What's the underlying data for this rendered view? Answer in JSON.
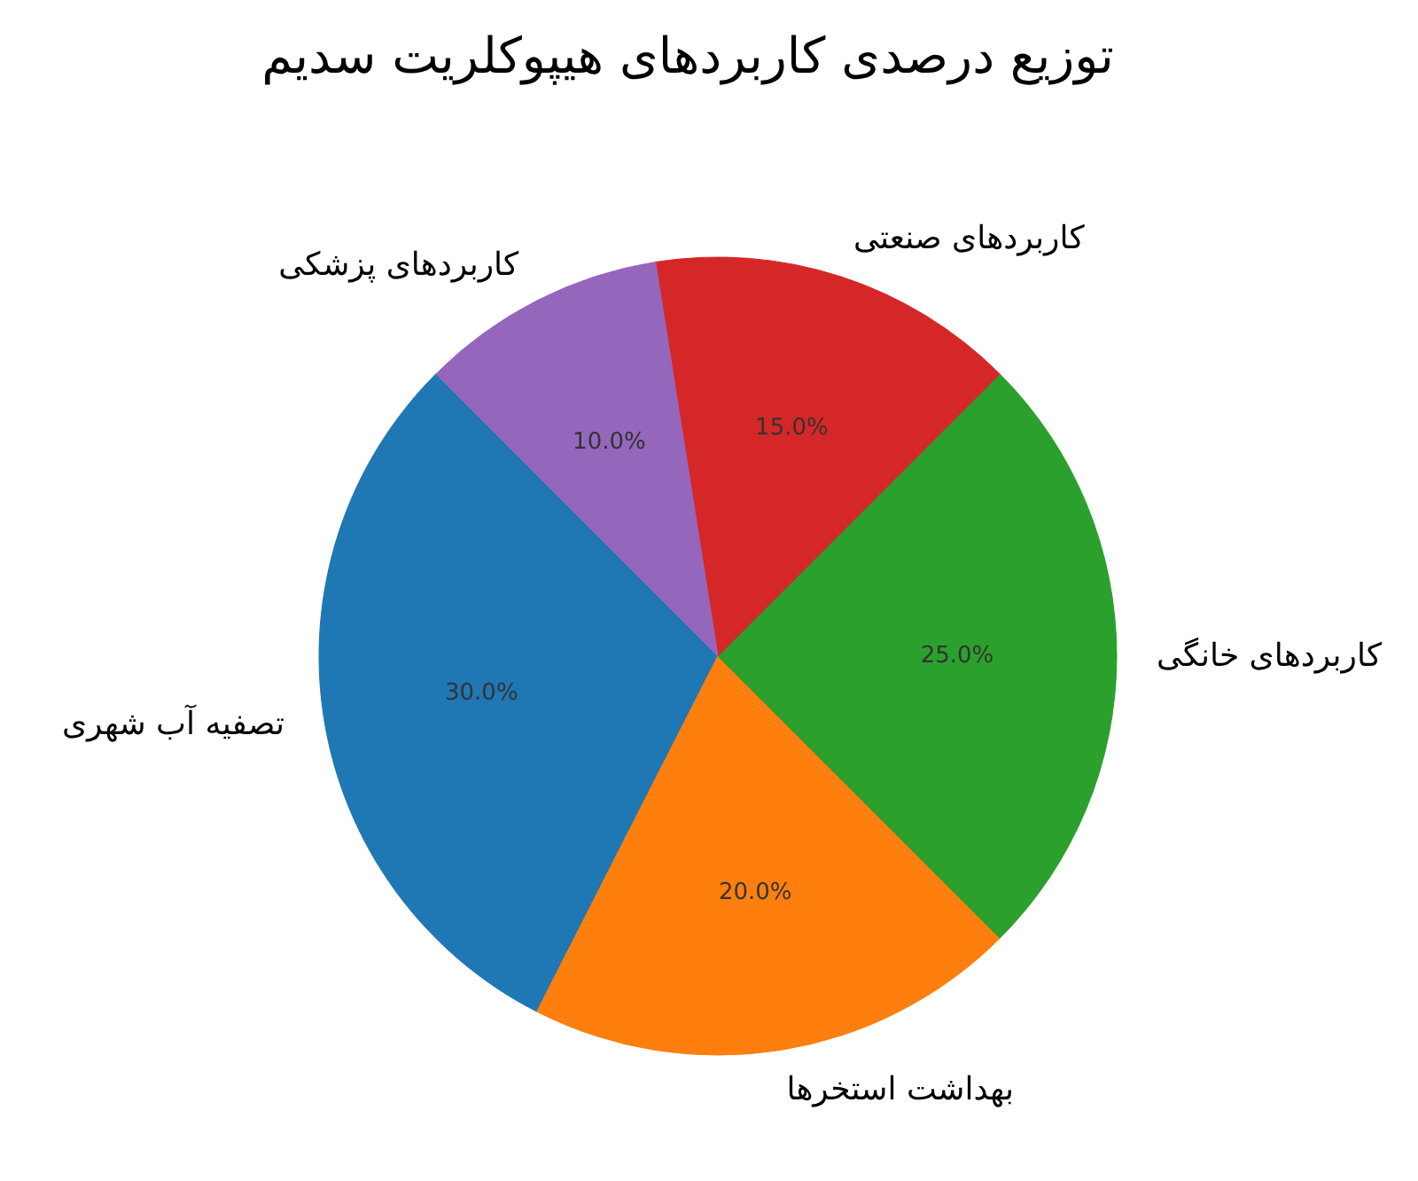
{
  "chart_data": {
    "type": "pie",
    "title": "توزیع درصدی کاربردهای هیپوکلریت سدیم",
    "categories": [
      "تصفیه آب شهری",
      "بهداشت استخرها",
      "کاربردهای خانگی",
      "کاربردهای صنعتی",
      "کاربردهای پزشکی"
    ],
    "values": [
      30,
      20,
      25,
      15,
      10
    ],
    "colors": [
      "#1f77b4",
      "#ff7f0e",
      "#2ca02c",
      "#d62728",
      "#9467bd"
    ],
    "value_labels": [
      "30.0%",
      "20.0%",
      "25.0%",
      "15.0%",
      "10.0%"
    ]
  }
}
